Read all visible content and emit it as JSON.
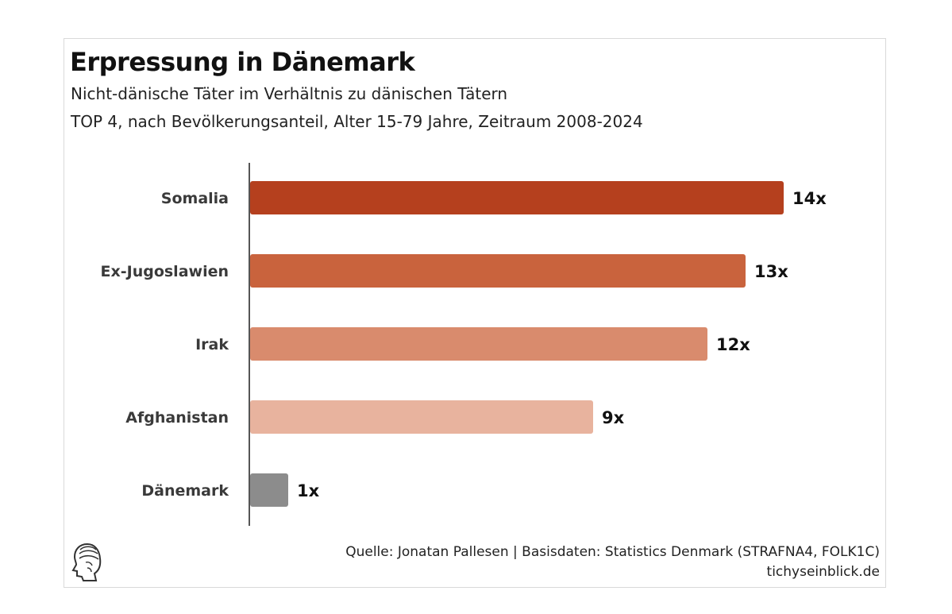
{
  "chart_data": {
    "type": "bar",
    "orientation": "horizontal",
    "title": "Erpressung in Dänemark",
    "subtitle_lines": [
      "Nicht-dänische Täter im Verhältnis zu dänischen Tätern",
      "TOP 4, nach Bevölkerungsanteil, Alter 15-79 Jahre, Zeitraum 2008-2024"
    ],
    "categories": [
      "Somalia",
      "Ex-Jugoslawien",
      "Irak",
      "Afghanistan",
      "Dänemark"
    ],
    "values": [
      14,
      13,
      12,
      9,
      1
    ],
    "value_labels": [
      "14x",
      "13x",
      "12x",
      "9x",
      "1x"
    ],
    "bar_colors": [
      "#b5401e",
      "#c9633d",
      "#d98b6d",
      "#e8b39e",
      "#8c8c8c"
    ],
    "xlim": [
      0,
      14
    ],
    "grid": false,
    "legend": "none"
  },
  "footer": {
    "source": "Quelle: Jonatan Pallesen | Basisdaten: Statistics Denmark (STRAFNA4, FOLK1C)",
    "site": "tichyseinblick.de",
    "logo_icon": "head-profile-icon"
  }
}
